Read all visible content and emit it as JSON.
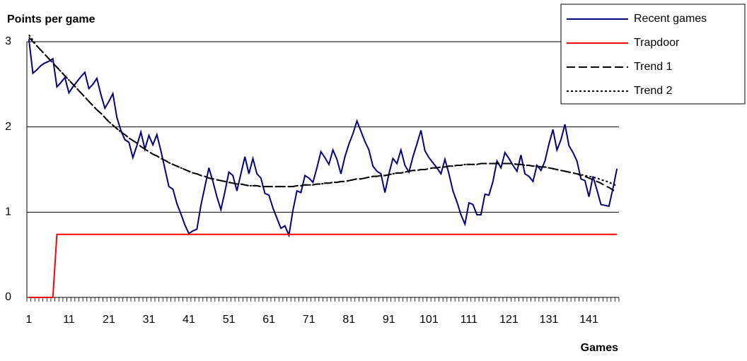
{
  "chart_data": {
    "type": "line",
    "y_label": "Points per game",
    "x_label": "Games",
    "categories": [
      1,
      null,
      null,
      null,
      null,
      null,
      null,
      null,
      null,
      null,
      11,
      null,
      null,
      null,
      null,
      null,
      null,
      null,
      null,
      null,
      21,
      null,
      null,
      null,
      null,
      null,
      null,
      null,
      null,
      null,
      31,
      null,
      null,
      null,
      null,
      null,
      null,
      null,
      null,
      null,
      41,
      null,
      null,
      null,
      null,
      null,
      null,
      null,
      null,
      null,
      51,
      null,
      null,
      null,
      null,
      null,
      null,
      null,
      null,
      null,
      61,
      null,
      null,
      null,
      null,
      null,
      null,
      null,
      null,
      null,
      71,
      null,
      null,
      null,
      null,
      null,
      null,
      null,
      null,
      null,
      81,
      null,
      null,
      null,
      null,
      null,
      null,
      null,
      null,
      null,
      91,
      null,
      null,
      null,
      null,
      null,
      null,
      null,
      null,
      null,
      101,
      null,
      null,
      null,
      null,
      null,
      null,
      null,
      null,
      null,
      111,
      null,
      null,
      null,
      null,
      null,
      null,
      null,
      null,
      null,
      121,
      null,
      null,
      null,
      null,
      null,
      null,
      null,
      null,
      null,
      131,
      null,
      null,
      null,
      null,
      null,
      null,
      null,
      null,
      null,
      141,
      null,
      null,
      null,
      null,
      null,
      null,
      null
    ],
    "series": [
      {
        "name": "Recent games",
        "color": "#000080",
        "dash": "solid",
        "values": [
          3.03,
          2.63,
          2.67,
          2.72,
          2.75,
          2.77,
          2.8,
          2.47,
          2.52,
          2.58,
          2.4,
          2.47,
          2.53,
          2.59,
          2.64,
          2.45,
          2.5,
          2.57,
          2.38,
          2.22,
          2.3,
          2.39,
          2.11,
          1.96,
          1.85,
          1.82,
          1.64,
          1.78,
          1.94,
          1.74,
          1.9,
          1.79,
          1.91,
          1.72,
          1.51,
          1.3,
          1.27,
          1.1,
          0.98,
          0.85,
          0.75,
          0.78,
          0.8,
          1.08,
          1.3,
          1.52,
          1.36,
          1.18,
          1.03,
          1.24,
          1.47,
          1.43,
          1.25,
          1.45,
          1.65,
          1.45,
          1.63,
          1.45,
          1.4,
          1.22,
          1.2,
          1.05,
          0.93,
          0.81,
          0.84,
          0.73,
          1.02,
          1.25,
          1.23,
          1.43,
          1.4,
          1.35,
          1.52,
          1.71,
          1.64,
          1.56,
          1.73,
          1.62,
          1.45,
          1.65,
          1.8,
          1.92,
          2.07,
          1.95,
          1.83,
          1.73,
          1.54,
          1.48,
          1.45,
          1.23,
          1.45,
          1.63,
          1.57,
          1.73,
          1.55,
          1.47,
          1.65,
          1.8,
          1.96,
          1.72,
          1.64,
          1.58,
          1.52,
          1.45,
          1.62,
          1.45,
          1.25,
          1.12,
          0.97,
          0.86,
          1.11,
          1.09,
          0.97,
          0.97,
          1.21,
          1.2,
          1.36,
          1.6,
          1.52,
          1.7,
          1.63,
          1.55,
          1.48,
          1.67,
          1.45,
          1.42,
          1.36,
          1.55,
          1.49,
          1.6,
          1.8,
          1.97,
          1.73,
          1.85,
          2.03,
          1.78,
          1.7,
          1.6,
          1.39,
          1.37,
          1.18,
          1.42,
          1.26,
          1.09,
          1.08,
          1.07,
          1.28,
          1.51
        ]
      },
      {
        "name": "Trapdoor",
        "color": "#ff0000",
        "dash": "solid",
        "values": [
          0,
          0,
          0,
          0,
          0,
          0,
          0,
          0.74,
          0.74,
          0.74,
          0.74,
          0.74,
          0.74,
          0.74,
          0.74,
          0.74,
          0.74,
          0.74,
          0.74,
          0.74,
          0.74,
          0.74,
          0.74,
          0.74,
          0.74,
          0.74,
          0.74,
          0.74,
          0.74,
          0.74,
          0.74,
          0.74,
          0.74,
          0.74,
          0.74,
          0.74,
          0.74,
          0.74,
          0.74,
          0.74,
          0.74,
          0.74,
          0.74,
          0.74,
          0.74,
          0.74,
          0.74,
          0.74,
          0.74,
          0.74,
          0.74,
          0.74,
          0.74,
          0.74,
          0.74,
          0.74,
          0.74,
          0.74,
          0.74,
          0.74,
          0.74,
          0.74,
          0.74,
          0.74,
          0.74,
          0.74,
          0.74,
          0.74,
          0.74,
          0.74,
          0.74,
          0.74,
          0.74,
          0.74,
          0.74,
          0.74,
          0.74,
          0.74,
          0.74,
          0.74,
          0.74,
          0.74,
          0.74,
          0.74,
          0.74,
          0.74,
          0.74,
          0.74,
          0.74,
          0.74,
          0.74,
          0.74,
          0.74,
          0.74,
          0.74,
          0.74,
          0.74,
          0.74,
          0.74,
          0.74,
          0.74,
          0.74,
          0.74,
          0.74,
          0.74,
          0.74,
          0.74,
          0.74,
          0.74,
          0.74,
          0.74,
          0.74,
          0.74,
          0.74,
          0.74,
          0.74,
          0.74,
          0.74,
          0.74,
          0.74,
          0.74,
          0.74,
          0.74,
          0.74,
          0.74,
          0.74,
          0.74,
          0.74,
          0.74,
          0.74,
          0.74,
          0.74,
          0.74,
          0.74,
          0.74,
          0.74,
          0.74,
          0.74,
          0.74,
          0.74,
          0.74,
          0.74,
          0.74,
          0.74,
          0.74,
          0.74,
          0.74,
          0.74
        ]
      },
      {
        "name": "Trend 1",
        "color": "#000000",
        "dash": "dashed",
        "values": [
          3.05,
          3.0,
          2.95,
          2.9,
          2.85,
          2.8,
          2.75,
          2.7,
          2.65,
          2.6,
          2.55,
          2.5,
          2.45,
          2.4,
          2.35,
          2.3,
          2.25,
          2.2,
          2.16,
          2.11,
          2.06,
          2.02,
          1.98,
          1.94,
          1.91,
          1.87,
          1.84,
          1.81,
          1.77,
          1.74,
          1.71,
          1.68,
          1.66,
          1.63,
          1.61,
          1.58,
          1.56,
          1.54,
          1.52,
          1.5,
          1.48,
          1.46,
          1.45,
          1.43,
          1.42,
          1.4,
          1.39,
          1.38,
          1.37,
          1.36,
          1.35,
          1.34,
          1.33,
          1.33,
          1.32,
          1.31,
          1.31,
          1.31,
          1.3,
          1.3,
          1.3,
          1.3,
          1.3,
          1.3,
          1.3,
          1.3,
          1.3,
          1.31,
          1.31,
          1.32,
          1.32,
          1.32,
          1.33,
          1.33,
          1.34,
          1.34,
          1.35,
          1.35,
          1.36,
          1.36,
          1.37,
          1.38,
          1.39,
          1.39,
          1.4,
          1.41,
          1.42,
          1.42,
          1.43,
          1.43,
          1.44,
          1.45,
          1.46,
          1.46,
          1.47,
          1.48,
          1.49,
          1.49,
          1.5,
          1.5,
          1.51,
          1.52,
          1.52,
          1.53,
          1.53,
          1.54,
          1.54,
          1.55,
          1.55,
          1.56,
          1.56,
          1.56,
          1.56,
          1.57,
          1.57,
          1.57,
          1.57,
          1.57,
          1.57,
          1.57,
          1.57,
          1.57,
          1.56,
          1.56,
          1.55,
          1.55,
          1.54,
          1.54,
          1.53,
          1.53,
          1.52,
          1.51,
          1.5,
          1.49,
          1.48,
          1.47,
          1.46,
          1.45,
          1.43,
          1.42,
          1.4,
          1.38,
          1.36,
          1.34,
          1.31,
          1.29,
          1.26,
          1.23
        ]
      },
      {
        "name": "Trend 2",
        "color": "#000000",
        "dash": "dotted",
        "values": [
          3.08,
          3.02,
          2.95,
          2.9,
          2.85,
          2.8,
          2.75,
          2.7,
          2.65,
          2.6,
          2.55,
          2.5,
          2.45,
          2.4,
          2.35,
          2.3,
          2.25,
          2.2,
          2.16,
          2.11,
          2.06,
          2.02,
          1.98,
          1.94,
          1.91,
          1.87,
          1.84,
          1.81,
          1.77,
          1.74,
          1.71,
          1.68,
          1.66,
          1.63,
          1.61,
          1.58,
          1.56,
          1.54,
          1.52,
          1.5,
          1.48,
          1.46,
          1.45,
          1.43,
          1.42,
          1.4,
          1.39,
          1.38,
          1.37,
          1.36,
          1.35,
          1.34,
          1.33,
          1.33,
          1.32,
          1.31,
          1.31,
          1.31,
          1.3,
          1.3,
          1.3,
          1.3,
          1.3,
          1.3,
          1.3,
          1.3,
          1.3,
          1.31,
          1.31,
          1.32,
          1.32,
          1.32,
          1.33,
          1.33,
          1.34,
          1.34,
          1.35,
          1.35,
          1.36,
          1.36,
          1.37,
          1.38,
          1.39,
          1.39,
          1.4,
          1.41,
          1.42,
          1.42,
          1.43,
          1.43,
          1.44,
          1.45,
          1.46,
          1.46,
          1.47,
          1.48,
          1.49,
          1.49,
          1.5,
          1.5,
          1.51,
          1.52,
          1.52,
          1.53,
          1.53,
          1.54,
          1.54,
          1.55,
          1.55,
          1.56,
          1.56,
          1.56,
          1.56,
          1.57,
          1.57,
          1.57,
          1.57,
          1.57,
          1.57,
          1.57,
          1.57,
          1.57,
          1.56,
          1.56,
          1.55,
          1.55,
          1.54,
          1.54,
          1.53,
          1.53,
          1.52,
          1.51,
          1.5,
          1.49,
          1.48,
          1.47,
          1.46,
          1.45,
          1.44,
          1.43,
          1.42,
          1.41,
          1.4,
          1.38,
          1.37,
          1.35,
          1.33,
          1.31
        ]
      }
    ],
    "ylim": [
      0,
      3
    ],
    "yticks": [
      0,
      1,
      2,
      3
    ],
    "grid": true,
    "legend": "top-right"
  }
}
